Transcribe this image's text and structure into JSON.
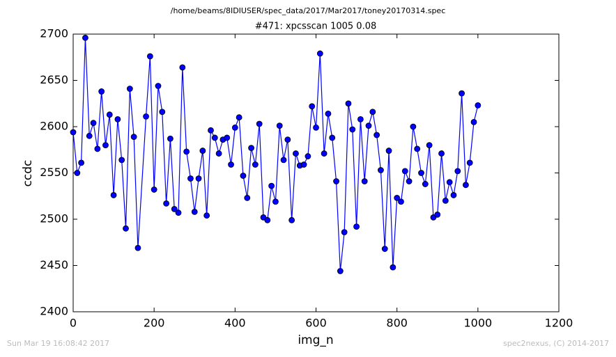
{
  "chart_data": {
    "type": "line",
    "title": "/home/beams/8IDIUSER/spec_data/2017/Mar2017/toney20170314.spec",
    "subtitle": "#471: xpcsscan 1005 0.08",
    "x_label": "img_n",
    "y_label": "ccdc",
    "footer_left": "Sun Mar 19 16:08:42 2017",
    "footer_right": "spec2nexus, (C) 2014-2017",
    "color": "#0000ff",
    "marker_edge": "#000000",
    "x": [
      0,
      10,
      20,
      30,
      40,
      50,
      60,
      70,
      80,
      90,
      100,
      110,
      120,
      130,
      140,
      150,
      160,
      180,
      190,
      200,
      210,
      220,
      230,
      240,
      250,
      260,
      270,
      280,
      290,
      300,
      310,
      320,
      330,
      340,
      350,
      360,
      370,
      380,
      390,
      400,
      410,
      420,
      430,
      440,
      450,
      460,
      470,
      480,
      490,
      500,
      510,
      520,
      530,
      540,
      550,
      560,
      570,
      580,
      590,
      600,
      610,
      620,
      630,
      640,
      650,
      660,
      670,
      680,
      690,
      700,
      710,
      720,
      730,
      740,
      750,
      760,
      770,
      780,
      790,
      800,
      810,
      820,
      830,
      840,
      850,
      860,
      870,
      880,
      890,
      900,
      910,
      920,
      930,
      940,
      950,
      960,
      970,
      980,
      990,
      1000
    ],
    "values": [
      2594,
      2550,
      2561,
      2696,
      2590,
      2604,
      2576,
      2638,
      2580,
      2613,
      2526,
      2608,
      2564,
      2490,
      2641,
      2589,
      2469,
      2611,
      2676,
      2532,
      2644,
      2616,
      2517,
      2587,
      2511,
      2507,
      2664,
      2573,
      2544,
      2508,
      2544,
      2574,
      2504,
      2596,
      2588,
      2571,
      2586,
      2588,
      2559,
      2599,
      2610,
      2547,
      2523,
      2577,
      2559,
      2603,
      2502,
      2499,
      2536,
      2519,
      2601,
      2564,
      2586,
      2499,
      2571,
      2558,
      2559,
      2568,
      2622,
      2599,
      2679,
      2571,
      2614,
      2588,
      2541,
      2444,
      2486,
      2625,
      2597,
      2492,
      2608,
      2541,
      2601,
      2616,
      2591,
      2553,
      2468,
      2574,
      2448,
      2523,
      2519,
      2552,
      2541,
      2600,
      2576,
      2550,
      2538,
      2580,
      2502,
      2505,
      2571,
      2520,
      2540,
      2526,
      2552,
      2636,
      2537,
      2561,
      2605,
      2623
    ],
    "xlim": [
      0,
      1200
    ],
    "ylim": [
      2400,
      2700
    ],
    "xticks": [
      0,
      200,
      400,
      600,
      800,
      1000,
      1200
    ],
    "yticks": [
      2400,
      2450,
      2500,
      2550,
      2600,
      2650,
      2700
    ]
  }
}
